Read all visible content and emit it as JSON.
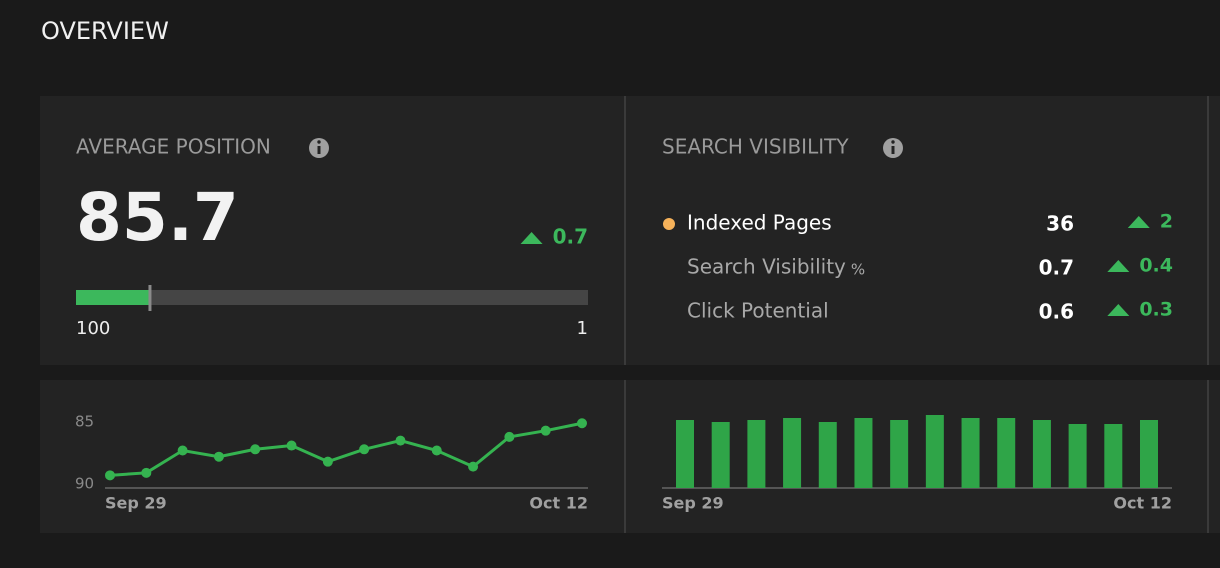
{
  "header": {
    "title": "OVERVIEW"
  },
  "average_position": {
    "title": "AVERAGE POSITION",
    "value": 85.7,
    "change": 0.7,
    "scale": [
      100,
      1
    ]
  },
  "search_visibility": {
    "title": "SEARCH VISIBILITY",
    "rows": [
      {
        "label": "Indexed Pages",
        "value": 36,
        "change": 2
      },
      {
        "label": "Search Visibility",
        "unit": "%",
        "value": 0.7,
        "change": 0.4
      },
      {
        "label": "Click Potential",
        "value": 0.6,
        "change": 0.3
      }
    ]
  },
  "chart_data": [
    {
      "type": "line",
      "categories": [
        "Sep 29",
        null,
        null,
        null,
        null,
        null,
        null,
        null,
        null,
        null,
        null,
        null,
        null,
        "Oct 12"
      ],
      "values": [
        89.3,
        89.1,
        87.3,
        87.8,
        87.2,
        86.9,
        88.2,
        87.2,
        86.5,
        87.3,
        88.6,
        86.2,
        85.7,
        85.1
      ],
      "color": "#35b350",
      "ylim": [
        90,
        85
      ],
      "yticks": [
        85,
        90
      ]
    },
    {
      "type": "bar",
      "categories": [
        "Sep 29",
        null,
        null,
        null,
        null,
        null,
        null,
        null,
        null,
        null,
        null,
        null,
        null,
        "Oct 12"
      ],
      "values": [
        68,
        66,
        68,
        70,
        66,
        70,
        68,
        73,
        70,
        70,
        68,
        64,
        64,
        68
      ],
      "color": "#2fa548",
      "ylim": [
        0,
        75
      ]
    }
  ]
}
